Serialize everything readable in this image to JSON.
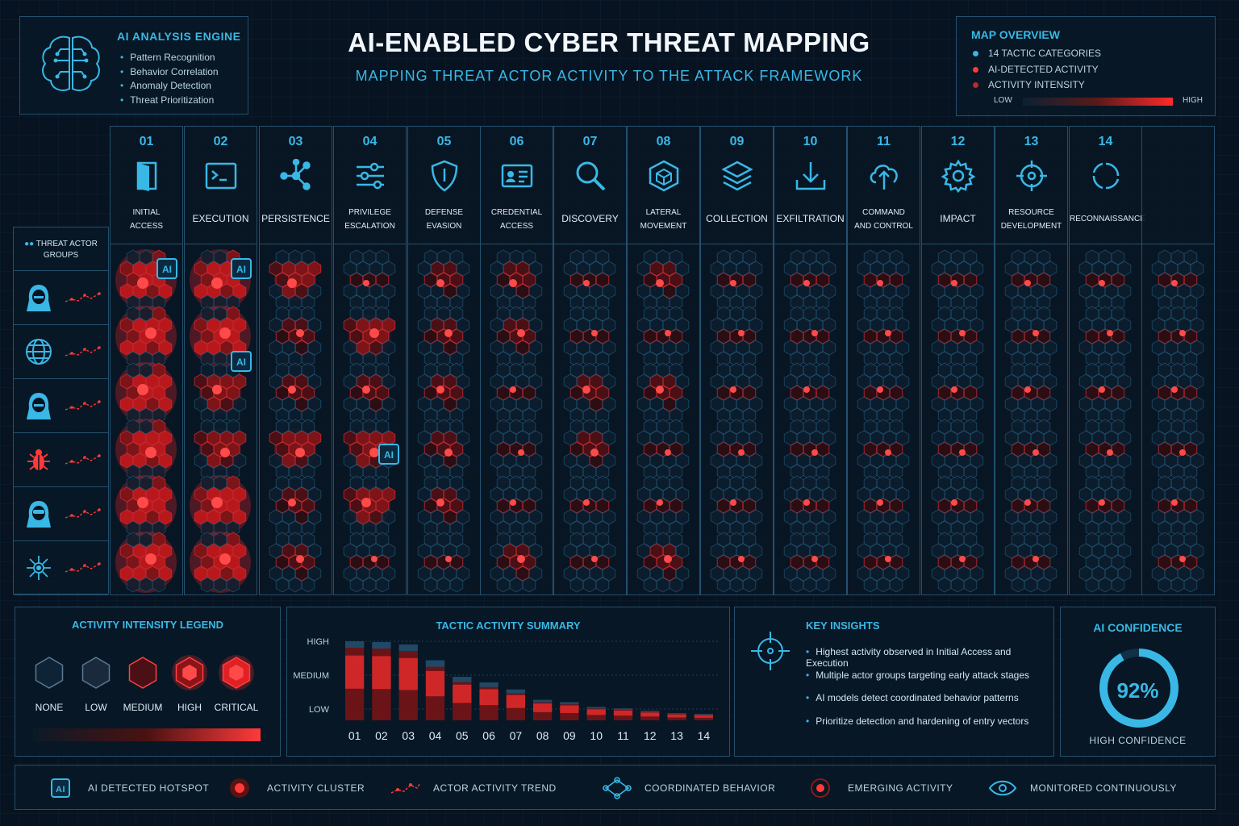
{
  "engine": {
    "title": "AI ANALYSIS ENGINE",
    "items": [
      "Pattern Recognition",
      "Behavior Correlation",
      "Anomaly Detection",
      "Threat Prioritization"
    ],
    "icon": "brain-circuit-icon"
  },
  "header": {
    "title": "AI-ENABLED CYBER THREAT MAPPING",
    "subtitle": "MAPPING THREAT ACTOR ACTIVITY TO THE ATTACK FRAMEWORK"
  },
  "overview": {
    "title": "MAP OVERVIEW",
    "items": [
      {
        "label": "14 TACTIC CATEGORIES",
        "color": "#39b8e6"
      },
      {
        "label": "AI-DETECTED ACTIVITY",
        "color": "#ff3a3a"
      },
      {
        "label": "ACTIVITY INTENSITY",
        "color": "#c0262a"
      }
    ],
    "low": "LOW",
    "high": "HIGH"
  },
  "actors": {
    "title": "THREAT ACTOR GROUPS",
    "groups": [
      "hooded-hacker-icon",
      "globe-icon",
      "hooded-hacker-icon",
      "bug-icon",
      "masked-hacker-icon",
      "network-node-icon"
    ]
  },
  "tactics": [
    {
      "num": "01",
      "name": "INITIAL\nACCESS",
      "icon": "door-icon",
      "intensity": [
        4,
        4,
        4,
        4,
        4,
        4
      ],
      "ai": [
        0
      ]
    },
    {
      "num": "02",
      "name": "EXECUTION",
      "icon": "terminal-icon",
      "intensity": [
        4,
        4,
        3,
        3,
        4,
        4
      ],
      "ai": [
        0,
        1
      ]
    },
    {
      "num": "03",
      "name": "PERSISTENCE",
      "icon": "branch-nodes-icon",
      "intensity": [
        3,
        2,
        2,
        3,
        2,
        2
      ],
      "ai": []
    },
    {
      "num": "04",
      "name": "PRIVILEGE\nESCALATION",
      "icon": "sliders-icon",
      "intensity": [
        1,
        3,
        2,
        3,
        3,
        1
      ],
      "ai": [
        2
      ]
    },
    {
      "num": "05",
      "name": "DEFENSE\nEVASION",
      "icon": "shield-icon",
      "intensity": [
        2,
        2,
        2,
        2,
        2,
        1
      ],
      "ai": []
    },
    {
      "num": "06",
      "name": "CREDENTIAL\nACCESS",
      "icon": "id-card-icon",
      "intensity": [
        2,
        2,
        1,
        1,
        1,
        2
      ],
      "ai": []
    },
    {
      "num": "07",
      "name": "DISCOVERY",
      "icon": "magnifier-icon",
      "intensity": [
        1,
        1,
        2,
        2,
        1,
        1
      ],
      "ai": []
    },
    {
      "num": "08",
      "name": "LATERAL\nMOVEMENT",
      "icon": "cube-icon",
      "intensity": [
        2,
        1,
        2,
        1,
        1,
        2
      ],
      "ai": []
    },
    {
      "num": "09",
      "name": "COLLECTION",
      "icon": "layers-icon",
      "intensity": [
        1,
        1,
        1,
        1,
        1,
        1
      ],
      "ai": []
    },
    {
      "num": "10",
      "name": "EXFILTRATION",
      "icon": "download-tray-icon",
      "intensity": [
        1,
        1,
        1,
        1,
        1,
        1
      ],
      "ai": []
    },
    {
      "num": "11",
      "name": "COMMAND\nAND CONTROL",
      "icon": "cloud-sync-icon",
      "intensity": [
        1,
        1,
        1,
        1,
        1,
        1
      ],
      "ai": []
    },
    {
      "num": "12",
      "name": "IMPACT",
      "icon": "gear-icon",
      "intensity": [
        1,
        1,
        1,
        1,
        1,
        1
      ],
      "ai": []
    },
    {
      "num": "13",
      "name": "RESOURCE\nDEVELOPMENT",
      "icon": "crosshair-icon",
      "intensity": [
        1,
        1,
        1,
        1,
        1,
        1
      ],
      "ai": []
    },
    {
      "num": "14",
      "name": "RECONNAISSANCE",
      "icon": "cycle-icon",
      "intensity": [
        1,
        1,
        1,
        1,
        1,
        0
      ],
      "ai": []
    },
    {
      "num": "",
      "name": "",
      "icon": "",
      "intensity": [
        1,
        1,
        1,
        1,
        1,
        1
      ],
      "ai": []
    }
  ],
  "legend": {
    "title": "ACTIVITY INTENSITY LEGEND",
    "levels": [
      "NONE",
      "LOW",
      "MEDIUM",
      "HIGH",
      "CRITICAL"
    ]
  },
  "chart_data": {
    "type": "bar",
    "title": "TACTIC ACTIVITY SUMMARY",
    "categories": [
      "01",
      "02",
      "03",
      "04",
      "05",
      "06",
      "07",
      "08",
      "09",
      "10",
      "11",
      "12",
      "13",
      "14"
    ],
    "values": [
      100,
      99,
      96,
      76,
      55,
      48,
      39,
      26,
      23,
      17,
      15,
      12,
      9,
      8
    ],
    "ylabels": [
      "HIGH",
      "MEDIUM",
      "LOW"
    ],
    "ylim": [
      0,
      100
    ]
  },
  "insights": {
    "title": "KEY INSIGHTS",
    "items": [
      "Highest activity observed in Initial Access and Execution",
      "Multiple actor groups targeting early attack stages",
      "AI models detect coordinated behavior patterns",
      "Prioritize detection and hardening of entry vectors"
    ]
  },
  "confidence": {
    "title": "AI CONFIDENCE",
    "value": "92%",
    "fraction": 0.92,
    "label": "HIGH CONFIDENCE"
  },
  "footer": [
    {
      "label": "AI DETECTED HOTSPOT",
      "icon": "ai-chip-icon"
    },
    {
      "label": "ACTIVITY CLUSTER",
      "icon": "hex-cluster-icon"
    },
    {
      "label": "ACTOR ACTIVITY TREND",
      "icon": "trend-line-icon"
    },
    {
      "label": "COORDINATED BEHAVIOR",
      "icon": "coordination-icon"
    },
    {
      "label": "EMERGING ACTIVITY",
      "icon": "pulse-dot-icon"
    },
    {
      "label": "MONITORED CONTINUOUSLY",
      "icon": "eye-icon"
    }
  ],
  "colors": {
    "accent": "#39b8e6",
    "threat": "#ff3a3a",
    "panel": "#081826"
  }
}
